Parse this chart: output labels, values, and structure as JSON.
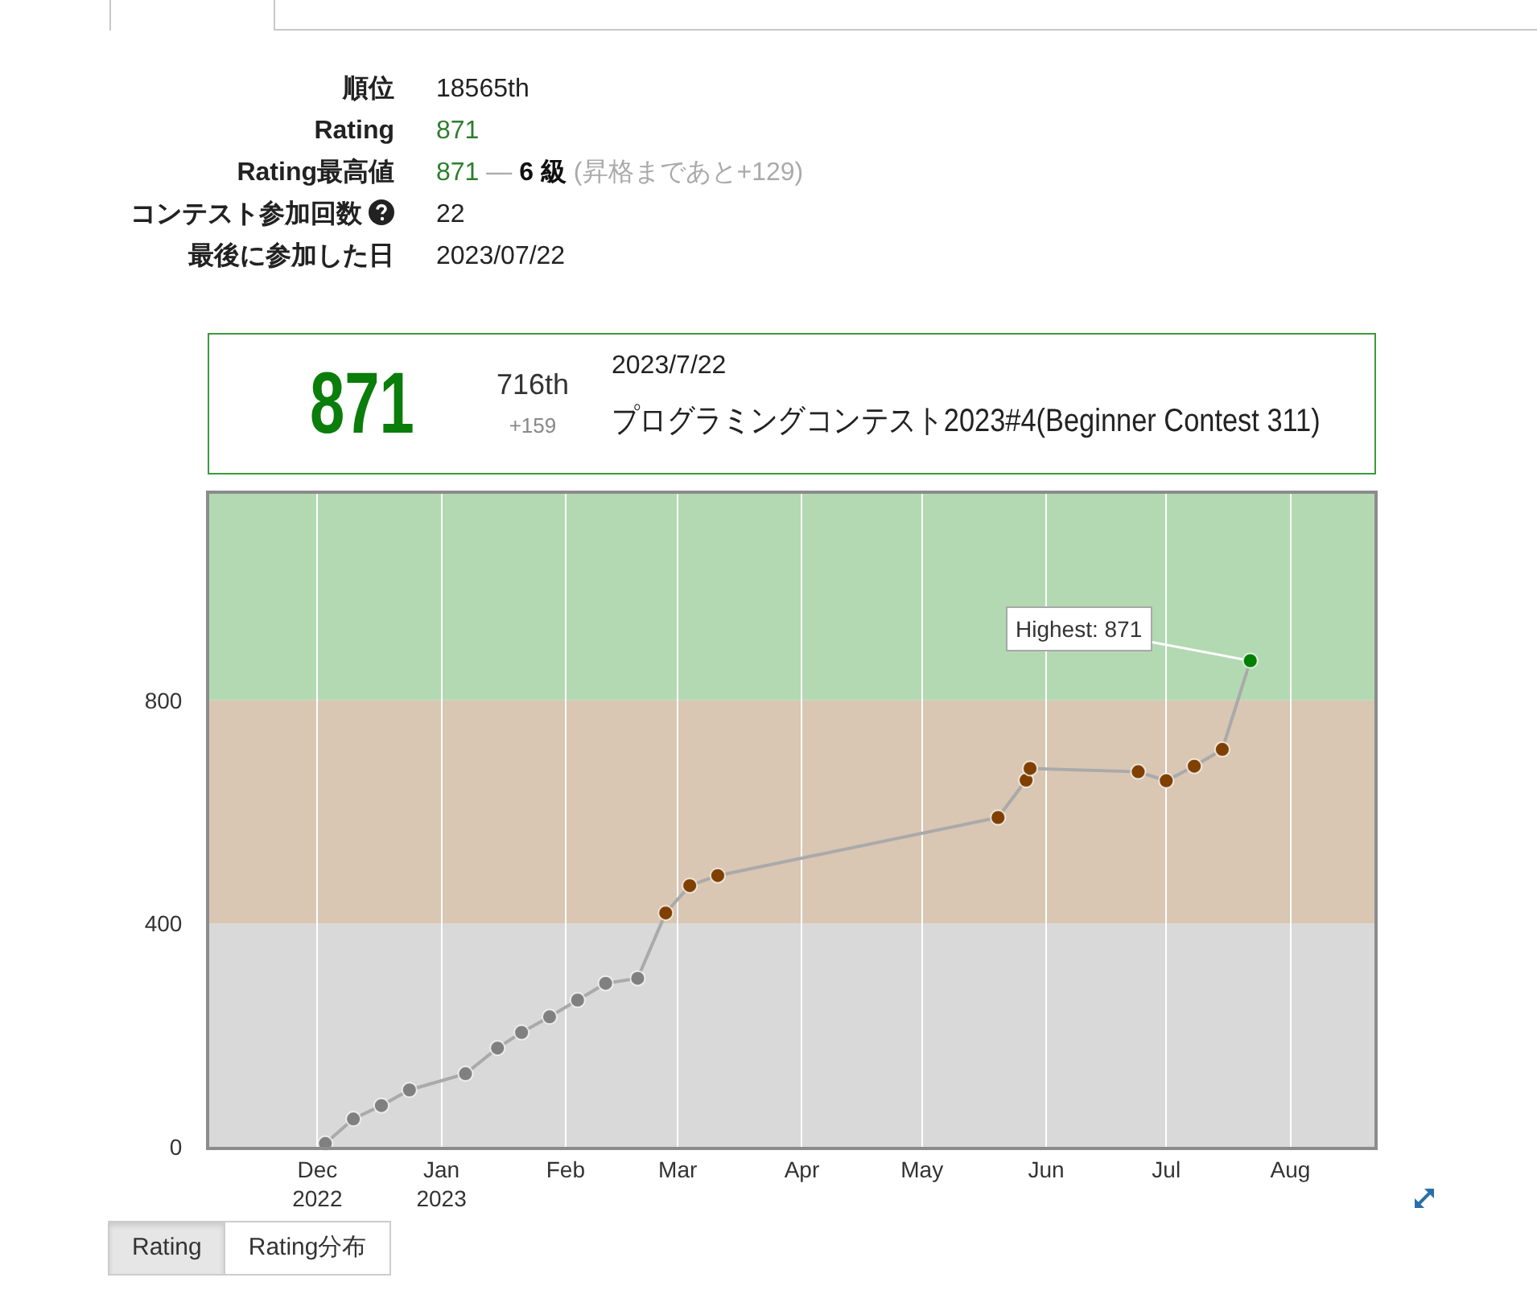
{
  "chart_data": [
    {
      "type": "other",
      "annotations": [
        "順位",
        "18565th",
        "Rating",
        "871",
        "Rating最高値",
        "871 — 6 級 (昇格まであと+129)",
        "コンテスト参加回数",
        "22",
        "最後に参加した日",
        "2023/07/22"
      ]
    },
    {
      "type": "other",
      "title": "871",
      "annotations": [
        "716th",
        "+159",
        "2023/7/22",
        "プログラミングコンテスト2023#4(Beginner Contest 311)"
      ]
    },
    {
      "type": "line",
      "x": [
        "2022-12-03",
        "2022-12-10",
        "2022-12-17",
        "2022-12-24",
        "2023-01-07",
        "2023-01-15",
        "2023-01-21",
        "2023-01-28",
        "2023-02-04",
        "2023-02-11",
        "2023-02-19",
        "2023-02-26",
        "2023-03-04",
        "2023-03-11",
        "2023-05-20",
        "2023-05-27",
        "2023-05-28",
        "2023-06-24",
        "2023-07-01",
        "2023-07-08",
        "2023-07-15",
        "2023-07-22"
      ],
      "series": [
        {
          "color": "#aaaaaa",
          "colors": [
            "#808080",
            "#808080",
            "#808080",
            "#808080",
            "#808080",
            "#808080",
            "#808080",
            "#808080",
            "#808080",
            "#808080",
            "#808080",
            "#804000",
            "#804000",
            "#804000",
            "#804000",
            "#804000",
            "#804000",
            "#804000",
            "#804000",
            "#804000",
            "#804000",
            "#008000"
          ],
          "values": [
            6,
            50,
            74,
            102,
            131,
            177,
            205,
            233,
            263,
            293,
            302,
            419,
            468,
            486,
            590,
            657,
            678,
            672,
            656,
            682,
            712,
            871
          ]
        }
      ],
      "xlim": [
        "2022-11-04",
        "2023-08-22"
      ],
      "ylim": [
        0,
        1170
      ],
      "xticks": [
        {
          "value": "2022-12-01",
          "label": "Dec\n2022"
        },
        {
          "value": "2023-01-01",
          "label": "Jan\n2023"
        },
        {
          "value": "2023-02-01",
          "label": "Feb"
        },
        {
          "value": "2023-03-01",
          "label": "Mar"
        },
        {
          "value": "2023-04-01",
          "label": "Apr"
        },
        {
          "value": "2023-05-01",
          "label": "May"
        },
        {
          "value": "2023-06-01",
          "label": "Jun"
        },
        {
          "value": "2023-07-01",
          "label": "Jul"
        },
        {
          "value": "2023-08-01",
          "label": "Aug"
        }
      ],
      "yticks": [
        0,
        400,
        800
      ],
      "bands": [
        {
          "axis": "y",
          "from": 0,
          "to": 400,
          "color": "#d9d9d9"
        },
        {
          "axis": "y",
          "from": 400,
          "to": 800,
          "color": "#d9c6b3"
        },
        {
          "axis": "y",
          "from": 800,
          "to": 1170,
          "color": "#b3d9b3"
        }
      ],
      "grid": "x",
      "marker": "circle",
      "line_style": "solid",
      "annotations": [
        {
          "text": "Highest: 871",
          "x": "2023-07-22",
          "y": 871
        },
        "Rating",
        "Rating分布"
      ]
    }
  ]
}
